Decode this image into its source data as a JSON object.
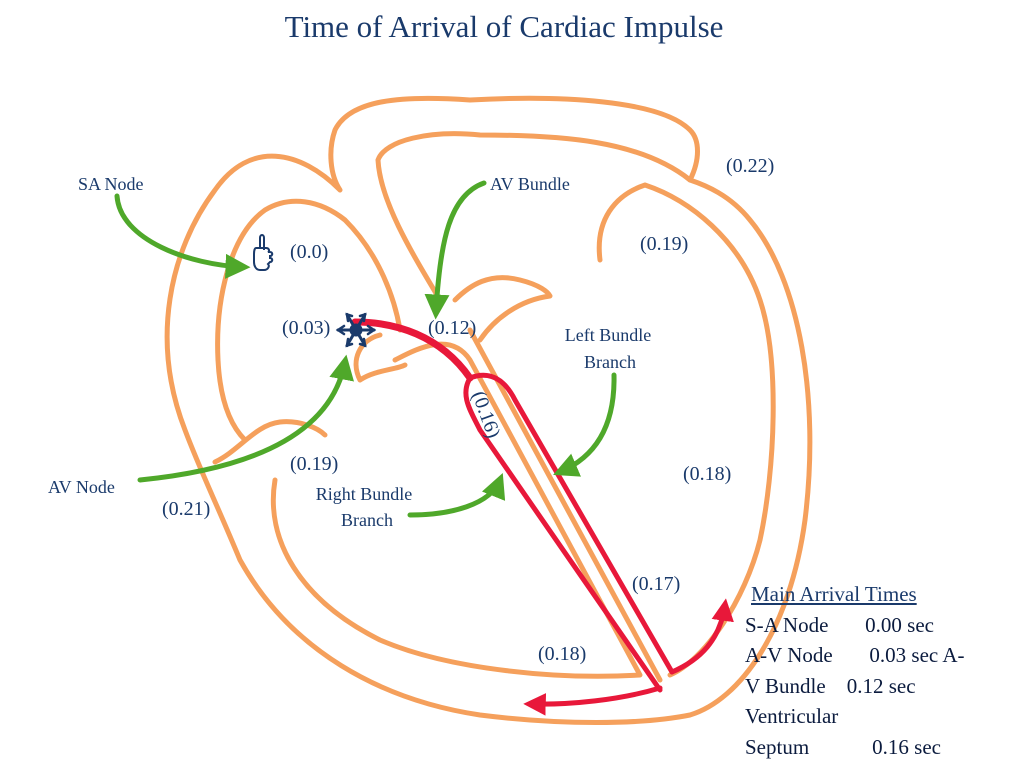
{
  "title": "Time of Arrival of Cardiac Impulse",
  "labels": {
    "sa_node": "SA Node",
    "av_bundle": "AV Bundle",
    "left_bundle_1": "Left Bundle",
    "left_bundle_2": "Branch",
    "av_node": "AV Node",
    "right_bundle_1": "Right Bundle",
    "right_bundle_2": "Branch"
  },
  "times": {
    "sa": "(0.0)",
    "av_node": "(0.03)",
    "av_bundle": "(0.12)",
    "septum": "(0.16)",
    "right_branch": "(0.19)",
    "left_atrium_wall": "(0.19)",
    "top_right": "(0.22)",
    "left_wall": "(0.18)",
    "apex": "(0.17)",
    "bottom": "(0.18)",
    "right_atrium_outer": "(0.21)"
  },
  "summary": {
    "heading": "Main Arrival Times",
    "rows": [
      "S-A Node       0.00 sec",
      "A-V Node       0.03 sec A-",
      "V Bundle    0.12 sec",
      "Ventricular",
      "Septum            0.16 sec"
    ]
  },
  "colors": {
    "wall": "#f5a05c",
    "conduction": "#e8183a",
    "arrow": "#4fa82a",
    "text": "#1a3a6b"
  },
  "icons": [
    "pointing-hand-icon",
    "snowflake-icon"
  ]
}
